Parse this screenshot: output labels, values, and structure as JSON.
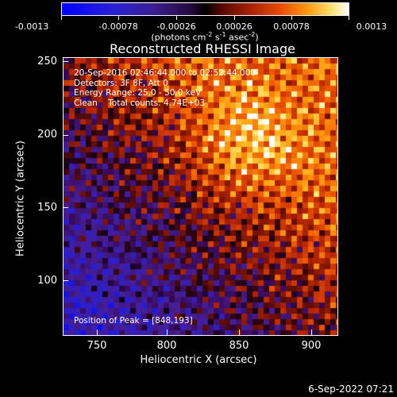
{
  "colorbar": {
    "ticks": [
      "-0.0013",
      "-0.00078",
      "-0.00026",
      "0.00026",
      "0.00078",
      "0.0013"
    ],
    "units_prefix": "(photons cm",
    "units_exp1": "-2",
    "units_mid": " s",
    "units_exp2": "-1",
    "units_mid2": " asec",
    "units_exp3": "-2",
    "units_suffix": ")"
  },
  "title": "Reconstructed RHESSI Image",
  "info": {
    "time": "20-Sep-2016 02:46:44.000 to 02:52:44.000",
    "detectors": "Detectors: 3F 8F, Att 0",
    "energy": "Energy Range: 25.0 - 50.0 keV",
    "method": "Clean    Total counts: 4.74E+03"
  },
  "peak": "Position of Peak = [848,193]",
  "axes": {
    "xlabel": "Heliocentric X (arcsec)",
    "ylabel": "Heliocentric Y (arcsec)",
    "xticks": [
      "750",
      "800",
      "850",
      "900"
    ],
    "yticks": [
      "250",
      "200",
      "150",
      "100"
    ]
  },
  "timestamp": "6-Sep-2022 07:21",
  "chart_data": {
    "type": "heatmap",
    "title": "Reconstructed RHESSI Image",
    "xlabel": "Heliocentric X (arcsec)",
    "ylabel": "Heliocentric Y (arcsec)",
    "xlim": [
      723,
      917
    ],
    "ylim": [
      57,
      253
    ],
    "colorbar_range": [
      -0.0013,
      0.0013
    ],
    "peak": [
      848,
      193
    ],
    "colors": {
      "negative": "#0000ff",
      "zero": "#000000",
      "positive": "#ff4a00",
      "max": "#ffffff"
    }
  }
}
